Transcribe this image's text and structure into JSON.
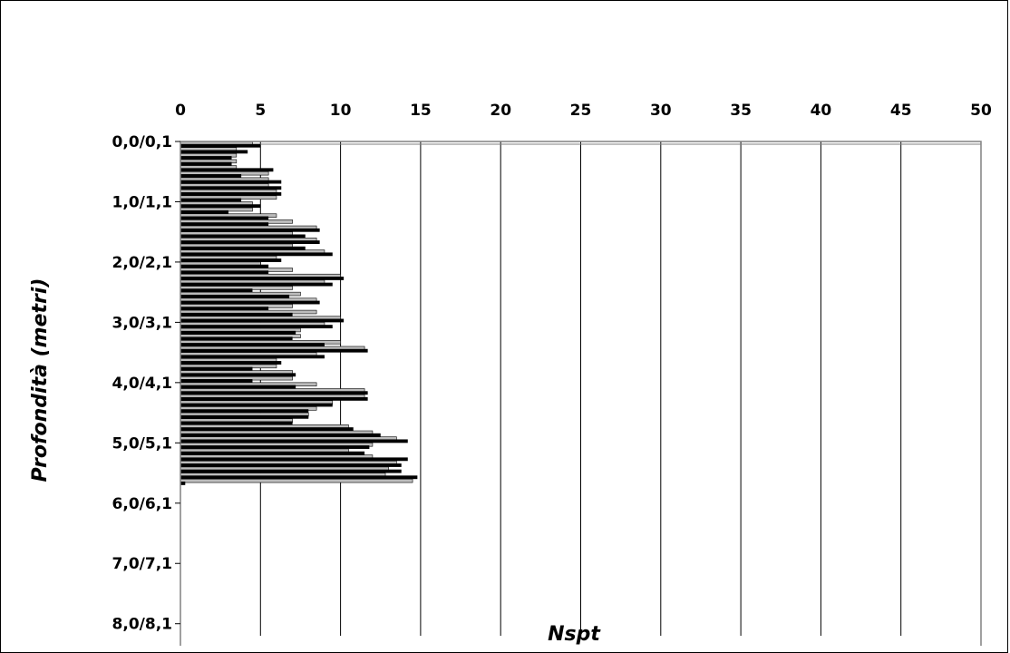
{
  "chart_data": {
    "type": "bar",
    "orientation": "horizontal",
    "xlabel": "Nspt",
    "ylabel": "Profondità (metri)",
    "xlim": [
      0,
      50
    ],
    "x_ticks": [
      "0",
      "5",
      "10",
      "15",
      "20",
      "25",
      "30",
      "35",
      "40",
      "45",
      "50"
    ],
    "y_tick_labels": [
      "0,0/0,1",
      "1,0/1,1",
      "2,0/2,1",
      "3,0/3,1",
      "4,0/4,1",
      "5,0/5,1",
      "6,0/6,1",
      "7,0/7,1",
      "8,0/8,1"
    ],
    "depth_step_m": 0.1,
    "grid": "vertical",
    "colors": {
      "gray_series": "#bcbcbc",
      "black_series": "#000000",
      "grid": "#000000",
      "plot_border": "#808080"
    },
    "series": [
      {
        "values": [
          4.5,
          3.5,
          3.5,
          3.5,
          3.5,
          5.5,
          5.5,
          5.5,
          6.0,
          6.0,
          4.5,
          4.5,
          6.0,
          7.0,
          8.5,
          7.0,
          8.5,
          7.0,
          9.0,
          6.0,
          5.0,
          7.0,
          10.0,
          9.0,
          7.0,
          7.5,
          8.5,
          7.0,
          8.5,
          10.0,
          9.0,
          7.5,
          7.5,
          10.0,
          11.5,
          8.5,
          6.0,
          6.0,
          7.0,
          7.0,
          8.5,
          11.5,
          11.5,
          9.5,
          8.5,
          8.0,
          7.0,
          10.5,
          12.0,
          13.5,
          12.0,
          10.5,
          12.0,
          13.5,
          13.0,
          12.8,
          14.5
        ]
      },
      {
        "values": [
          5.0,
          4.2,
          3.2,
          3.2,
          5.8,
          3.8,
          6.3,
          6.3,
          6.3,
          3.8,
          5.0,
          3.0,
          5.5,
          5.5,
          8.7,
          7.8,
          8.7,
          7.8,
          9.5,
          6.3,
          5.5,
          5.5,
          10.2,
          9.5,
          4.5,
          6.8,
          8.7,
          5.5,
          7.0,
          10.2,
          9.5,
          7.2,
          7.0,
          9.0,
          11.7,
          9.0,
          6.3,
          4.5,
          7.2,
          4.5,
          7.2,
          11.7,
          11.7,
          9.5,
          8.0,
          8.0,
          7.0,
          10.8,
          12.5,
          14.2,
          11.8,
          11.5,
          14.2,
          13.8,
          13.8,
          14.8,
          0.3
        ]
      }
    ]
  }
}
